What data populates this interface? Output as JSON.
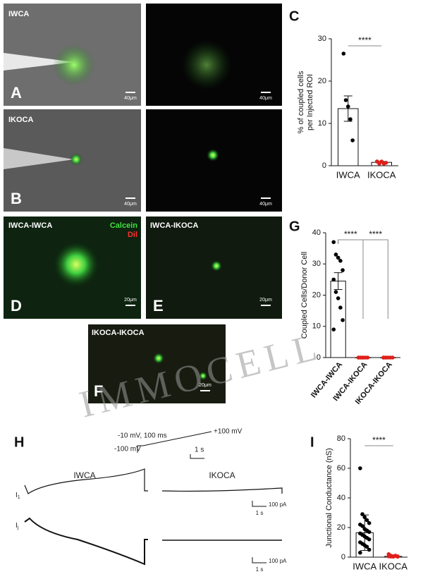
{
  "figure": {
    "panel_letters": [
      "A",
      "B",
      "C",
      "D",
      "E",
      "F",
      "G",
      "H",
      "I"
    ],
    "watermark": "IMMOCELL"
  },
  "micrographs": {
    "a_label": "IWCA",
    "b_label": "IKOCA",
    "d_label": "IWCA-IWCA",
    "e_label": "IWCA-IKOCA",
    "f_label": "IKOCA-IKOCA",
    "d_legend": [
      "Calcein",
      "Dil"
    ],
    "scale_bars": [
      "40μm",
      "40μm",
      "40μm",
      "40μm",
      "20μm",
      "20μm",
      "20μm"
    ]
  },
  "traces": {
    "protocol_labels": [
      "-10 mV, 100 ms",
      "+100 mV",
      "-100 mV",
      "1 s"
    ],
    "columns": [
      "IWCA",
      "IKOCA"
    ],
    "rows": [
      "I",
      "I"
    ],
    "row_subs": [
      "1",
      "j"
    ],
    "scale": [
      "100 pA",
      "1 s",
      "100 pA",
      "1 s"
    ]
  },
  "chart_data": [
    {
      "type": "bar",
      "ylabel": [
        "% of coupled cells",
        "per Injected ROI"
      ],
      "categories": [
        "IWCA",
        "IKOCA"
      ],
      "values": [
        13.5,
        0.8
      ],
      "errors": [
        3,
        0.2
      ],
      "points": [
        [
          26.5,
          15.5,
          14,
          11,
          6
        ],
        [
          1,
          0.5,
          1,
          0.5,
          0.7,
          1
        ]
      ],
      "colors": [
        "#000000",
        "#e0201b"
      ],
      "ylim": [
        0,
        30
      ],
      "yticks": [
        0,
        10,
        20,
        30
      ],
      "significance": [
        "****"
      ]
    },
    {
      "type": "bar",
      "ylabel": [
        "Coupled Cells/Donor Cell"
      ],
      "categories": [
        "IWCA-IWCA",
        "IWCA-IKOCA",
        "IKOCA-IKOCA"
      ],
      "values": [
        24.5,
        0,
        0
      ],
      "errors": [
        2.7,
        0,
        0
      ],
      "points": [
        [
          37,
          33,
          32,
          31,
          28,
          25,
          21,
          19,
          16,
          12,
          9
        ],
        [
          0,
          0,
          0,
          0,
          0,
          0,
          0,
          0
        ],
        [
          0,
          0,
          0,
          0,
          0,
          0,
          0
        ]
      ],
      "colors": [
        "#000000",
        "#e0201b",
        "#e0201b"
      ],
      "ylim": [
        0,
        40
      ],
      "yticks": [
        0,
        10,
        20,
        30,
        40
      ],
      "significance": [
        "****",
        "****"
      ]
    },
    {
      "type": "bar",
      "ylabel": [
        "Junctional Conductance (nS)"
      ],
      "categories": [
        "IWCA",
        "IKOCA"
      ],
      "values": [
        16.5,
        0.5
      ],
      "errors": [
        12,
        0.5
      ],
      "points": [
        [
          60,
          29,
          27,
          25,
          23,
          22,
          21,
          19,
          18,
          17,
          16,
          15,
          14,
          13,
          12,
          10,
          9,
          8,
          7,
          5,
          3
        ],
        [
          0.5,
          1,
          0.3,
          0.8,
          0.5,
          2,
          0.4,
          0.6,
          1,
          0.3
        ]
      ],
      "colors": [
        "#000000",
        "#e0201b"
      ],
      "ylim": [
        0,
        80
      ],
      "yticks": [
        0,
        20,
        40,
        60,
        80
      ],
      "significance": [
        "****"
      ]
    }
  ]
}
